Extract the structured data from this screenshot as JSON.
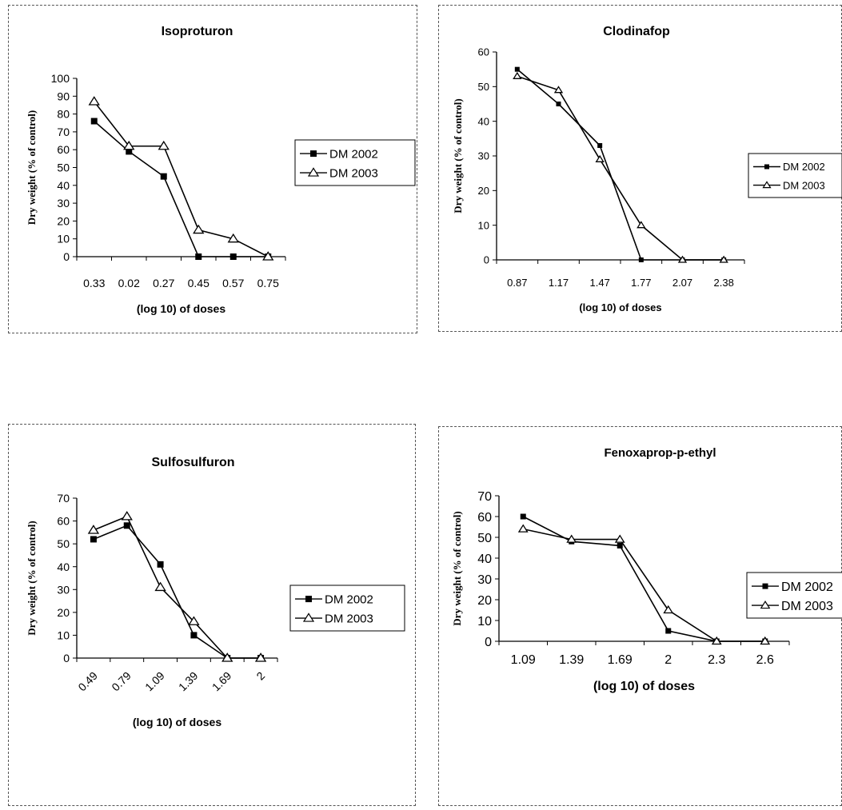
{
  "chart_data": [
    {
      "type": "line",
      "title": "Isoproturon",
      "xlabel": "(log 10) of doses",
      "ylabel": "Dry weight (% of control)",
      "categories": [
        "0.33",
        "0.02",
        "0.27",
        "0.45",
        "0.57",
        "0.75"
      ],
      "ylim": [
        0,
        100
      ],
      "yticks": [
        0,
        10,
        20,
        30,
        40,
        50,
        60,
        70,
        80,
        90,
        100
      ],
      "series": [
        {
          "name": "DM 2002",
          "marker": "square",
          "values": [
            76,
            59,
            45,
            0,
            0,
            0
          ]
        },
        {
          "name": "DM 2003",
          "marker": "triangle",
          "values": [
            87,
            62,
            62,
            15,
            10,
            0
          ]
        }
      ],
      "legend": "right",
      "grid": false
    },
    {
      "type": "line",
      "title": "Clodinafop",
      "xlabel": "(log 10) of doses",
      "ylabel": "Dry weight (% of control)",
      "categories": [
        "0.87",
        "1.17",
        "1.47",
        "1.77",
        "2.07",
        "2.38"
      ],
      "ylim": [
        0,
        60
      ],
      "yticks": [
        0,
        10,
        20,
        30,
        40,
        50,
        60
      ],
      "series": [
        {
          "name": "DM 2002",
          "marker": "square",
          "values": [
            55,
            45,
            33,
            0,
            0,
            0
          ]
        },
        {
          "name": "DM 2003",
          "marker": "triangle",
          "values": [
            53,
            49,
            29,
            10,
            0,
            0
          ]
        }
      ],
      "legend": "right",
      "grid": false
    },
    {
      "type": "line",
      "title": "Sulfosulfuron",
      "xlabel": "(log 10) of doses",
      "ylabel": "Dry weight (% of control)",
      "categories": [
        "0.49",
        "0.79",
        "1.09",
        "1.39",
        "1.69",
        "2"
      ],
      "ylim": [
        0,
        70
      ],
      "yticks": [
        0,
        10,
        20,
        30,
        40,
        50,
        60,
        70
      ],
      "series": [
        {
          "name": "DM 2002",
          "marker": "square",
          "values": [
            52,
            58,
            41,
            10,
            0,
            0
          ]
        },
        {
          "name": "DM 2003",
          "marker": "triangle",
          "values": [
            56,
            62,
            31,
            16,
            0,
            0
          ]
        }
      ],
      "legend": "right",
      "grid": false
    },
    {
      "type": "line",
      "title": "Fenoxaprop-p-ethyl",
      "xlabel": "(log 10) of doses",
      "ylabel": "Dry weight (% of control)",
      "categories": [
        "1.09",
        "1.39",
        "1.69",
        "2",
        "2.3",
        "2.6"
      ],
      "ylim": [
        0,
        70
      ],
      "yticks": [
        0,
        10,
        20,
        30,
        40,
        50,
        60,
        70
      ],
      "series": [
        {
          "name": "DM 2002",
          "marker": "square",
          "values": [
            60,
            48,
            46,
            5,
            0,
            0
          ]
        },
        {
          "name": "DM 2003",
          "marker": "triangle",
          "values": [
            54,
            49,
            49,
            15,
            0,
            0
          ]
        }
      ],
      "legend": "right",
      "grid": false
    }
  ]
}
